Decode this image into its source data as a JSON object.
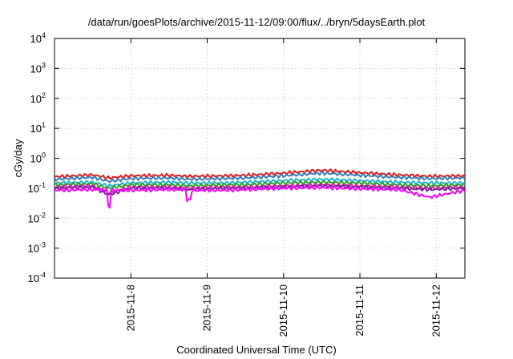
{
  "chart_data": {
    "type": "line",
    "title": "/data/run/goesPlots/archive/2015-11-12/09:00/flux/../bryn/5daysEarth.plot",
    "xlabel": "Coordinated Universal Time (UTC)",
    "ylabel": "cGy/day",
    "y_scale": "log",
    "ylim": [
      0.0001,
      10000
    ],
    "y_ticks": [
      {
        "value": 0.0001,
        "base": "10",
        "exp": "-4"
      },
      {
        "value": 0.001,
        "base": "10",
        "exp": "-3"
      },
      {
        "value": 0.01,
        "base": "10",
        "exp": "-2"
      },
      {
        "value": 0.1,
        "base": "10",
        "exp": "-1"
      },
      {
        "value": 1,
        "base": "10",
        "exp": "0"
      },
      {
        "value": 10,
        "base": "10",
        "exp": "1"
      },
      {
        "value": 100,
        "base": "10",
        "exp": "2"
      },
      {
        "value": 1000,
        "base": "10",
        "exp": "3"
      },
      {
        "value": 10000,
        "base": "10",
        "exp": "4"
      }
    ],
    "xlim": [
      "2015-11-07 00:00",
      "2015-11-12 09:00"
    ],
    "x_ticks": [
      "2015-11-8",
      "2015-11-9",
      "2015-11-10",
      "2015-11-11",
      "2015-11-12"
    ],
    "x_tick_dates": [
      "2015-11-08",
      "2015-11-09",
      "2015-11-10",
      "2015-11-11",
      "2015-11-12"
    ],
    "grid": true,
    "x": [
      "2015-11-07 00:00",
      "2015-11-07 12:00",
      "2015-11-07 17:00",
      "2015-11-08 00:00",
      "2015-11-08 12:00",
      "2015-11-08 18:00",
      "2015-11-09 06:00",
      "2015-11-09 12:00",
      "2015-11-10 00:00",
      "2015-11-10 12:00",
      "2015-11-11 00:00",
      "2015-11-11 12:00",
      "2015-11-11 22:00",
      "2015-11-12 09:00"
    ],
    "series": [
      {
        "color": "#e41a1c",
        "values": [
          0.24,
          0.28,
          0.22,
          0.26,
          0.27,
          0.25,
          0.26,
          0.27,
          0.32,
          0.4,
          0.33,
          0.28,
          0.25,
          0.26
        ]
      },
      {
        "color": "#377eb8",
        "values": [
          0.2,
          0.23,
          0.17,
          0.21,
          0.22,
          0.2,
          0.21,
          0.22,
          0.26,
          0.32,
          0.27,
          0.23,
          0.21,
          0.22
        ]
      },
      {
        "color": "#1fb8c8",
        "values": [
          0.15,
          0.16,
          0.12,
          0.15,
          0.16,
          0.15,
          0.15,
          0.16,
          0.18,
          0.2,
          0.18,
          0.16,
          0.15,
          0.15
        ]
      },
      {
        "color": "#2ca02c",
        "values": [
          0.13,
          0.14,
          0.1,
          0.13,
          0.13,
          0.12,
          0.13,
          0.13,
          0.15,
          0.16,
          0.15,
          0.13,
          0.12,
          0.13
        ]
      },
      {
        "color": "#d62790",
        "values": [
          0.11,
          0.12,
          0.07,
          0.11,
          0.11,
          0.1,
          0.11,
          0.11,
          0.12,
          0.13,
          0.12,
          0.11,
          0.1,
          0.11
        ]
      },
      {
        "color": "#7b1fa2",
        "values": [
          0.1,
          0.11,
          0.06,
          0.1,
          0.1,
          0.09,
          0.1,
          0.1,
          0.11,
          0.12,
          0.11,
          0.1,
          0.09,
          0.1
        ]
      },
      {
        "color": "#ff00ff",
        "values": [
          0.085,
          0.09,
          0.025,
          0.085,
          0.09,
          0.04,
          0.085,
          0.09,
          0.1,
          0.105,
          0.095,
          0.09,
          0.05,
          0.085
        ]
      }
    ]
  }
}
